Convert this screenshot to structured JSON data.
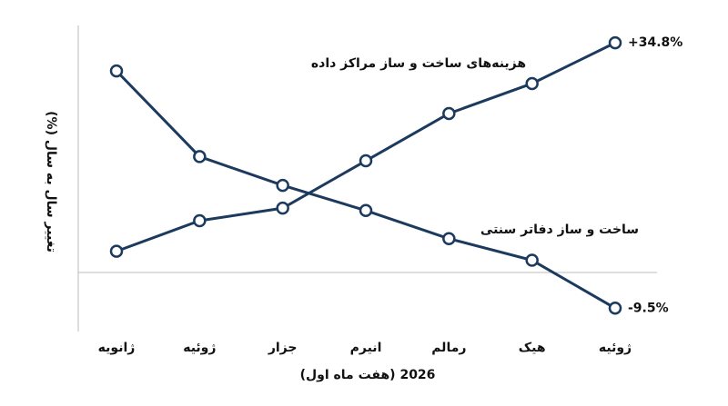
{
  "chart_data": {
    "type": "line",
    "categories": [
      "ژانویه",
      "ژوئیه",
      "جزار",
      "انیرم",
      "رمالم",
      "هیک",
      "ژوئیه"
    ],
    "xlabel": "2026 (هفت ماه اول)",
    "ylabel": "تغییر سال به سال (%)",
    "ylim": [
      -13.4,
      37.7
    ],
    "series": [
      {
        "name": "هزینه‌های ساخت و ساز مراکز داده",
        "color": "#1c3a5e",
        "values": [
          0,
          5.1,
          7.2,
          15.1,
          23.0,
          28.0,
          34.8
        ],
        "value_labels": [
          null,
          null,
          null,
          null,
          null,
          null,
          "+34.8%"
        ]
      },
      {
        "name": "ساخت و ساز دفاتر سنتی",
        "color": "#1c3a5e",
        "values": [
          30.1,
          15.8,
          11.0,
          6.8,
          2.1,
          -1.5,
          -9.5
        ],
        "value_labels": [
          null,
          null,
          null,
          null,
          null,
          null,
          "-9.5%"
        ]
      }
    ]
  }
}
